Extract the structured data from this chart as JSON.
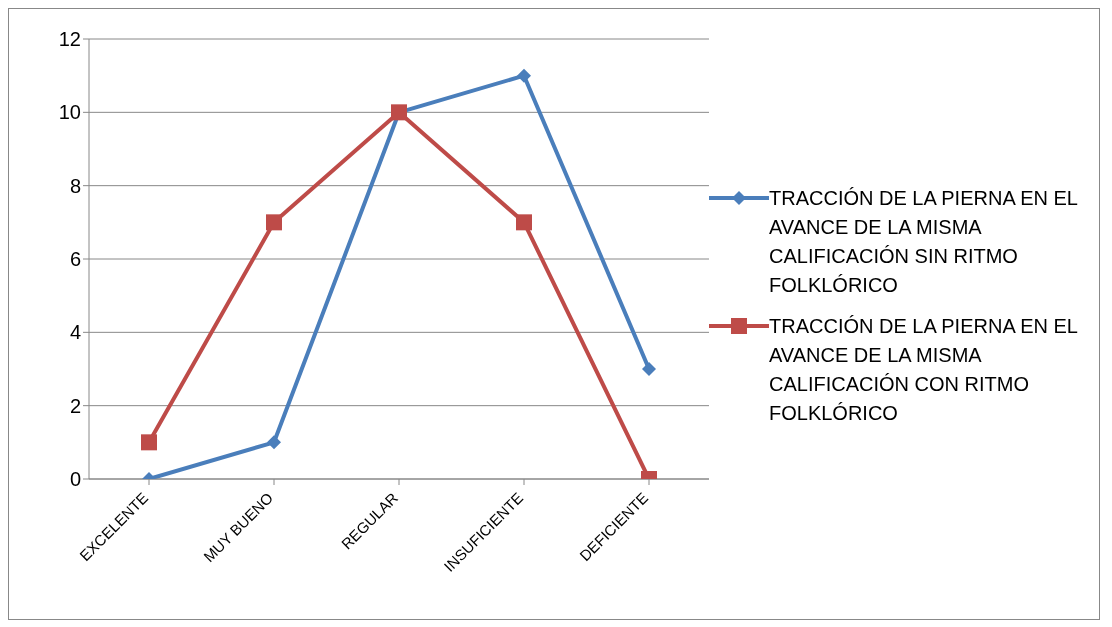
{
  "chart_data": {
    "type": "line",
    "categories": [
      "EXCELENTE",
      "MUY BUENO",
      "REGULAR",
      "INSUFICIENTE",
      "DEFICIENTE"
    ],
    "series": [
      {
        "name": "TRACCIÓN DE LA PIERNA EN EL AVANCE DE LA MISMA CALIFICACIÓN SIN RITMO FOLKLÓRICO",
        "color": "#4a7ebb",
        "marker": "diamond",
        "values": [
          0,
          1,
          10,
          11,
          3
        ]
      },
      {
        "name": "TRACCIÓN DE LA PIERNA EN EL AVANCE DE LA MISMA CALIFICACIÓN CON RITMO FOLKLÓRICO",
        "color": "#be4b48",
        "marker": "square",
        "values": [
          1,
          7,
          10,
          7,
          0
        ]
      }
    ],
    "ylim": [
      0,
      12
    ],
    "yticks": [
      0,
      2,
      4,
      6,
      8,
      10,
      12
    ],
    "grid": "y",
    "legend": "right",
    "line_style": "solid"
  }
}
